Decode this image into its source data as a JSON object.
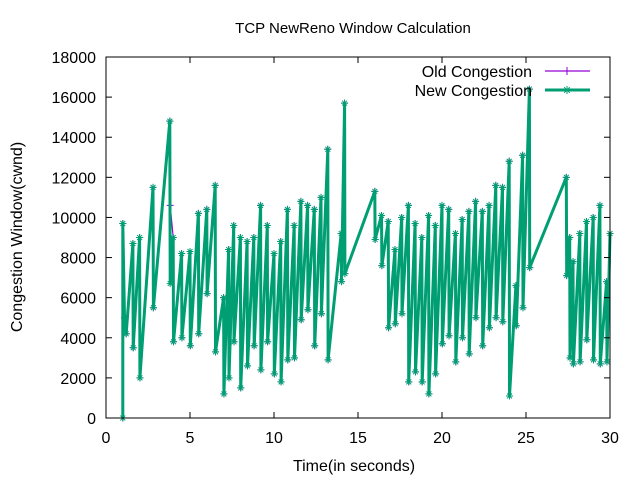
{
  "chart_data": {
    "type": "line",
    "title": "TCP NewReno Window Calculation",
    "xlabel": "Time(in seconds)",
    "ylabel": "Congestion Window(cwnd)",
    "xlim": [
      0,
      30
    ],
    "ylim": [
      0,
      18000
    ],
    "x_ticks": [
      0,
      5,
      10,
      15,
      20,
      25,
      30
    ],
    "y_ticks": [
      0,
      2000,
      4000,
      6000,
      8000,
      10000,
      12000,
      14000,
      16000,
      18000
    ],
    "grid": false,
    "legend_position": "top-right",
    "series": [
      {
        "name": "Old Congestion",
        "color": "#9400d3",
        "marker": "plus",
        "x": [
          1.0,
          1.0,
          1.1,
          1.2,
          1.6,
          1.62,
          2.0,
          2.02,
          2.8,
          2.82,
          3.8,
          3.82,
          4.0,
          4.02,
          4.5,
          4.52,
          5.0,
          5.02,
          5.5,
          5.52,
          6.0,
          6.02,
          6.5,
          6.52,
          7.0,
          7.02,
          7.3,
          7.32,
          7.6,
          7.62,
          8.0,
          8.02,
          8.4,
          8.42,
          8.8,
          8.82,
          9.2,
          9.22,
          9.6,
          9.62,
          10.0,
          10.02,
          10.4,
          10.42,
          10.8,
          10.82,
          11.2,
          11.22,
          11.6,
          11.62,
          12.0,
          12.02,
          12.4,
          12.42,
          12.8,
          12.82,
          13.2,
          13.22,
          14.0,
          14.02,
          14.2,
          14.22,
          16.0,
          16.02,
          16.4,
          16.42,
          16.8,
          16.82,
          17.2,
          17.22,
          17.6,
          17.62,
          18.0,
          18.02,
          18.4,
          18.42,
          18.8,
          18.82,
          19.2,
          19.22,
          19.6,
          19.62,
          20.0,
          20.02,
          20.4,
          20.42,
          20.8,
          20.82,
          21.2,
          21.22,
          21.6,
          21.62,
          22.0,
          22.02,
          22.4,
          22.42,
          22.8,
          22.82,
          23.2,
          23.22,
          23.6,
          23.62,
          24.0,
          24.02,
          24.4,
          24.42,
          24.8,
          24.82,
          25.2,
          25.22,
          27.4,
          27.42,
          27.6,
          27.62,
          27.8,
          27.82,
          28.2,
          28.22,
          28.6,
          28.62,
          29.0,
          29.02,
          29.4,
          29.42,
          29.8,
          29.82,
          30.0
        ],
        "y": [
          0,
          9700,
          5000,
          4200,
          8700,
          3500,
          9000,
          2000,
          11500,
          5500,
          14800,
          10600,
          9000,
          3800,
          8200,
          4000,
          8300,
          3600,
          10200,
          4200,
          10400,
          6200,
          11600,
          3300,
          6000,
          1200,
          8400,
          2000,
          9600,
          3800,
          9000,
          1500,
          8800,
          2600,
          9000,
          3600,
          10600,
          2400,
          9600,
          3800,
          8200,
          2200,
          8800,
          1800,
          10400,
          2900,
          9600,
          3000,
          10800,
          4900,
          10600,
          5400,
          10400,
          3600,
          11000,
          5200,
          13400,
          2900,
          9200,
          6800,
          15700,
          7200,
          11300,
          8900,
          10100,
          7600,
          9800,
          4500,
          8400,
          4700,
          10000,
          5200,
          10600,
          1800,
          9700,
          2300,
          9000,
          1800,
          10100,
          1200,
          9600,
          2200,
          10600,
          3700,
          10400,
          4100,
          9200,
          2800,
          9900,
          4000,
          10300,
          3200,
          10800,
          5000,
          10300,
          3600,
          10600,
          4500,
          11600,
          5000,
          11500,
          4800,
          12800,
          1100,
          6600,
          4600,
          13100,
          5500,
          16400,
          7500,
          12000,
          7100,
          9000,
          3000,
          7800,
          2700,
          9200,
          2800,
          9800,
          3900,
          10000,
          2900,
          10600,
          2700,
          6800,
          2800,
          9200
        ]
      },
      {
        "name": "New Congestion",
        "color": "#009e73",
        "marker": "star",
        "x": [
          1.0,
          1.0,
          1.1,
          1.2,
          1.6,
          1.62,
          2.0,
          2.02,
          2.8,
          2.82,
          3.8,
          3.82,
          4.0,
          4.02,
          4.5,
          4.52,
          5.0,
          5.02,
          5.5,
          5.52,
          6.0,
          6.02,
          6.5,
          6.52,
          7.0,
          7.02,
          7.3,
          7.32,
          7.6,
          7.62,
          8.0,
          8.02,
          8.4,
          8.42,
          8.8,
          8.82,
          9.2,
          9.22,
          9.6,
          9.62,
          10.0,
          10.02,
          10.4,
          10.42,
          10.8,
          10.82,
          11.2,
          11.22,
          11.6,
          11.62,
          12.0,
          12.02,
          12.4,
          12.42,
          12.8,
          12.82,
          13.2,
          13.22,
          14.0,
          14.02,
          14.2,
          14.22,
          16.0,
          16.02,
          16.4,
          16.42,
          16.8,
          16.82,
          17.2,
          17.22,
          17.6,
          17.62,
          18.0,
          18.02,
          18.4,
          18.42,
          18.8,
          18.82,
          19.2,
          19.22,
          19.6,
          19.62,
          20.0,
          20.02,
          20.4,
          20.42,
          20.8,
          20.82,
          21.2,
          21.22,
          21.6,
          21.62,
          22.0,
          22.02,
          22.4,
          22.42,
          22.8,
          22.82,
          23.2,
          23.22,
          23.6,
          23.62,
          24.0,
          24.02,
          24.4,
          24.42,
          24.8,
          24.82,
          25.2,
          25.22,
          27.4,
          27.42,
          27.6,
          27.62,
          27.8,
          27.82,
          28.2,
          28.22,
          28.6,
          28.62,
          29.0,
          29.02,
          29.4,
          29.42,
          29.8,
          29.82,
          30.0
        ],
        "y": [
          0,
          9700,
          5000,
          4200,
          8700,
          3500,
          9000,
          2000,
          11500,
          5500,
          14800,
          6700,
          9000,
          3800,
          8200,
          4000,
          8300,
          3600,
          10200,
          4200,
          10400,
          6200,
          11600,
          3300,
          6000,
          1200,
          8400,
          2000,
          9600,
          3800,
          9000,
          1500,
          8800,
          2600,
          9000,
          3600,
          10600,
          2400,
          9600,
          3800,
          8200,
          2200,
          8800,
          1800,
          10400,
          2900,
          9600,
          3000,
          10800,
          4900,
          10600,
          5400,
          10400,
          3600,
          11000,
          5200,
          13400,
          2900,
          9200,
          6800,
          15700,
          7200,
          11300,
          8900,
          10100,
          7600,
          9800,
          4500,
          8400,
          4700,
          10000,
          5200,
          10600,
          1800,
          9700,
          2300,
          9000,
          1800,
          10100,
          1200,
          9600,
          2200,
          10600,
          3700,
          10400,
          4100,
          9200,
          2800,
          9900,
          4000,
          10300,
          3200,
          10800,
          5000,
          10300,
          3600,
          10600,
          4500,
          11600,
          5000,
          11500,
          4800,
          12800,
          1100,
          6600,
          4600,
          13100,
          5500,
          16400,
          7500,
          12000,
          7100,
          9000,
          3000,
          7800,
          2700,
          9200,
          2800,
          9800,
          3900,
          10000,
          2900,
          10600,
          2700,
          6800,
          2800,
          9200
        ]
      }
    ]
  }
}
